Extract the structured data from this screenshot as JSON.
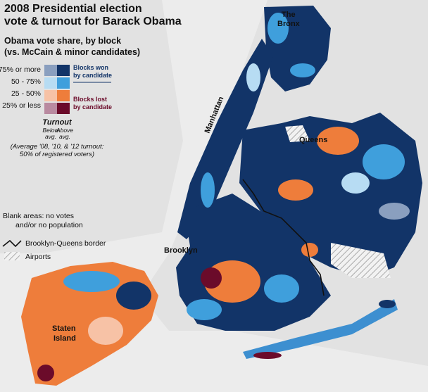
{
  "title": [
    "2008 Presidential election",
    "vote & turnout for Barack Obama"
  ],
  "subtitle": [
    "Obama vote share, by block",
    "(vs. McCain & minor candidates)"
  ],
  "legend": {
    "rows": [
      "75% or more",
      "50 - 75%",
      "25 - 50%",
      "25% or less"
    ],
    "won": [
      "Blocks won",
      "by candidate"
    ],
    "lost": [
      "Blocks lost",
      "by candidate"
    ],
    "turnout": {
      "title": "Turnout",
      "below": [
        "Below",
        "avg."
      ],
      "above": [
        "Above",
        "avg."
      ],
      "note": [
        "(Average '08, '10, & '12 turnout:",
        "50% of registered voters)"
      ]
    }
  },
  "notes": {
    "blank": [
      "Blank areas: no votes",
      "and/or no population"
    ],
    "border": "Brooklyn-Queens border",
    "airports": "Airports"
  },
  "labels": {
    "bronx": [
      "The",
      "Bronx"
    ],
    "manhattan": "Manhattan",
    "queens": "Queens",
    "brooklyn": "Brooklyn",
    "staten_island": [
      "Staten",
      "Island"
    ]
  }
}
